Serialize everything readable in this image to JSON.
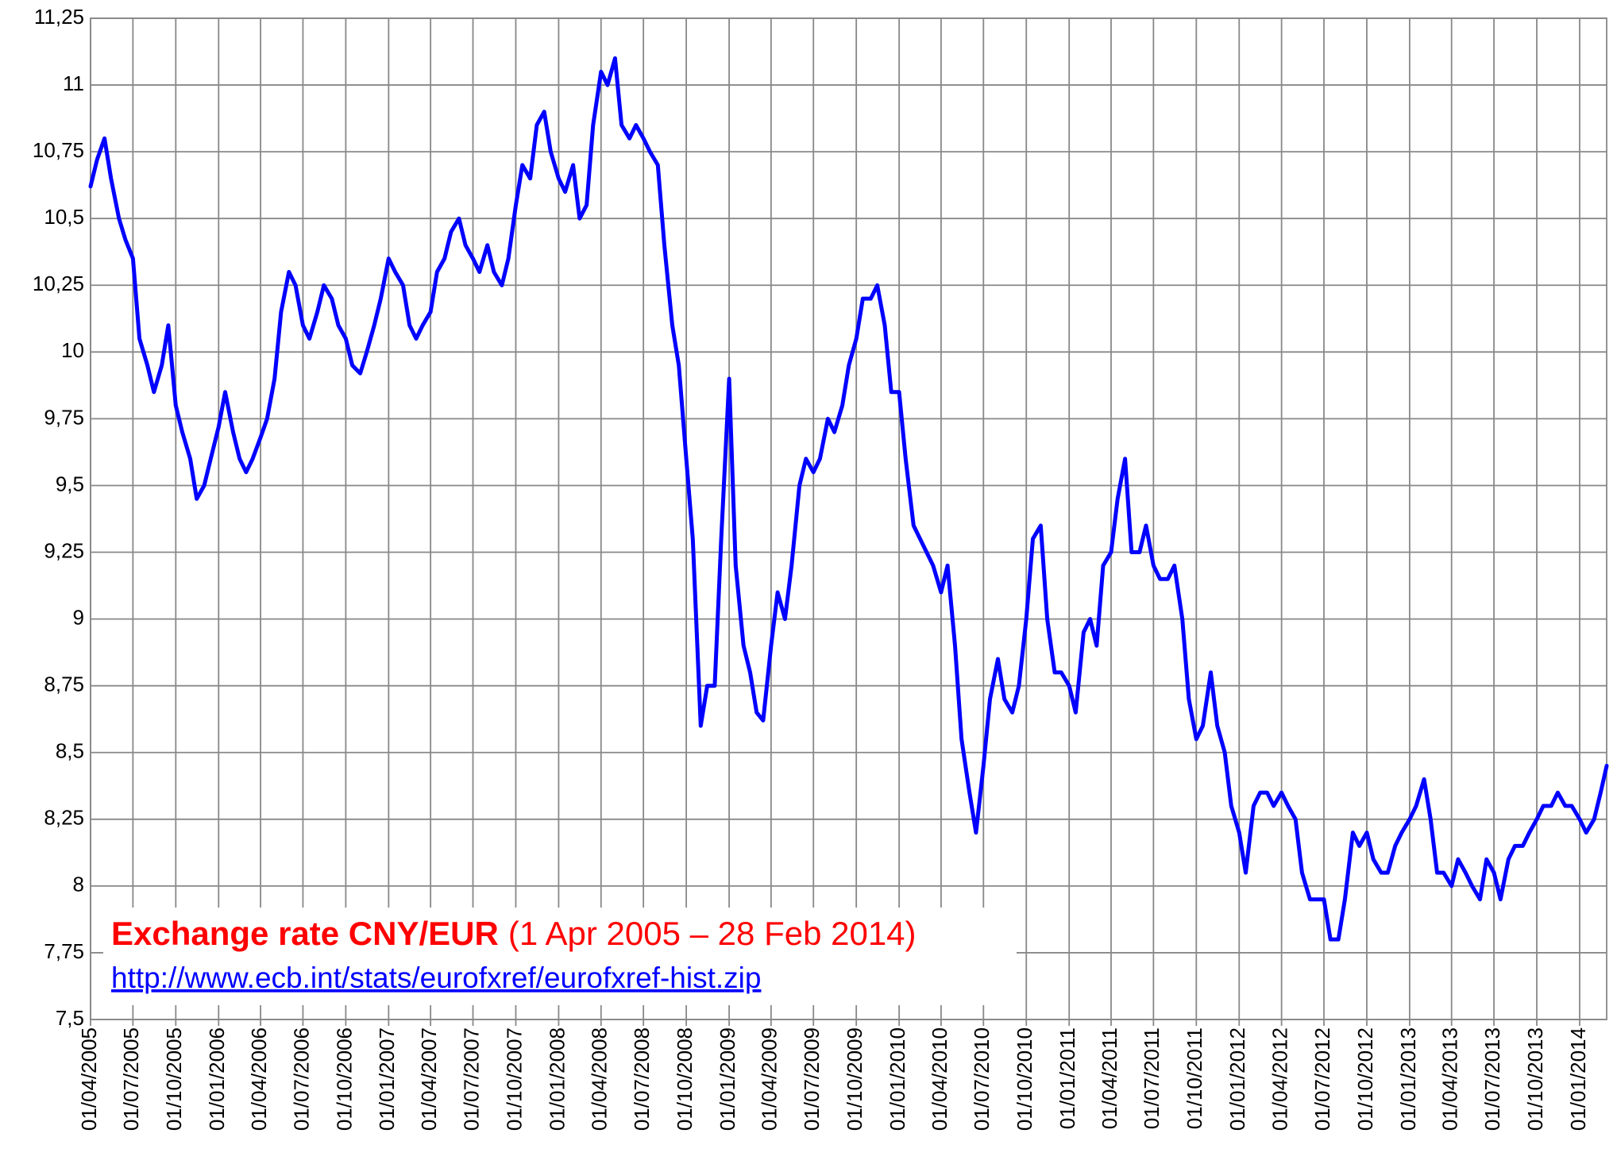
{
  "chart_data": {
    "type": "line",
    "title": "Exchange rate CNY/EUR",
    "subtitle": "(1 Apr 2005 – 28 Feb 2014)",
    "source": "http://www.ecb.int/stats/eurofxref/eurofxref-hist.zip",
    "color": "#0000ff",
    "grid": true,
    "x": [
      "2005-04-01",
      "2005-04-15",
      "2005-05-01",
      "2005-05-15",
      "2005-06-01",
      "2005-06-15",
      "2005-07-01",
      "2005-07-15",
      "2005-08-01",
      "2005-08-15",
      "2005-09-01",
      "2005-09-15",
      "2005-10-01",
      "2005-10-15",
      "2005-11-01",
      "2005-11-15",
      "2005-12-01",
      "2005-12-15",
      "2006-01-01",
      "2006-01-15",
      "2006-02-01",
      "2006-02-15",
      "2006-03-01",
      "2006-03-15",
      "2006-04-01",
      "2006-04-15",
      "2006-05-01",
      "2006-05-15",
      "2006-06-01",
      "2006-06-15",
      "2006-07-01",
      "2006-07-15",
      "2006-08-01",
      "2006-08-15",
      "2006-09-01",
      "2006-09-15",
      "2006-10-01",
      "2006-10-15",
      "2006-11-01",
      "2006-11-15",
      "2006-12-01",
      "2006-12-15",
      "2007-01-01",
      "2007-01-15",
      "2007-02-01",
      "2007-02-15",
      "2007-03-01",
      "2007-03-15",
      "2007-04-01",
      "2007-04-15",
      "2007-05-01",
      "2007-05-15",
      "2007-06-01",
      "2007-06-15",
      "2007-07-01",
      "2007-07-15",
      "2007-08-01",
      "2007-08-15",
      "2007-09-01",
      "2007-09-15",
      "2007-10-01",
      "2007-10-15",
      "2007-11-01",
      "2007-11-15",
      "2007-12-01",
      "2007-12-15",
      "2008-01-01",
      "2008-01-15",
      "2008-02-01",
      "2008-02-15",
      "2008-03-01",
      "2008-03-15",
      "2008-04-01",
      "2008-04-15",
      "2008-05-01",
      "2008-05-15",
      "2008-06-01",
      "2008-06-15",
      "2008-07-01",
      "2008-07-15",
      "2008-08-01",
      "2008-08-15",
      "2008-09-01",
      "2008-09-15",
      "2008-10-01",
      "2008-10-15",
      "2008-11-01",
      "2008-11-15",
      "2008-12-01",
      "2008-12-15",
      "2009-01-01",
      "2009-01-15",
      "2009-02-01",
      "2009-02-15",
      "2009-03-01",
      "2009-03-15",
      "2009-04-01",
      "2009-04-15",
      "2009-05-01",
      "2009-05-15",
      "2009-06-01",
      "2009-06-15",
      "2009-07-01",
      "2009-07-15",
      "2009-08-01",
      "2009-08-15",
      "2009-09-01",
      "2009-09-15",
      "2009-10-01",
      "2009-10-15",
      "2009-11-01",
      "2009-11-15",
      "2009-12-01",
      "2009-12-15",
      "2010-01-01",
      "2010-01-15",
      "2010-02-01",
      "2010-02-15",
      "2010-03-01",
      "2010-03-15",
      "2010-04-01",
      "2010-04-15",
      "2010-05-01",
      "2010-05-15",
      "2010-06-01",
      "2010-06-15",
      "2010-07-01",
      "2010-07-15",
      "2010-08-01",
      "2010-08-15",
      "2010-09-01",
      "2010-09-15",
      "2010-10-01",
      "2010-10-15",
      "2010-11-01",
      "2010-11-15",
      "2010-12-01",
      "2010-12-15",
      "2011-01-01",
      "2011-01-15",
      "2011-02-01",
      "2011-02-15",
      "2011-03-01",
      "2011-03-15",
      "2011-04-01",
      "2011-04-15",
      "2011-05-01",
      "2011-05-15",
      "2011-06-01",
      "2011-06-15",
      "2011-07-01",
      "2011-07-15",
      "2011-08-01",
      "2011-08-15",
      "2011-09-01",
      "2011-09-15",
      "2011-10-01",
      "2011-10-15",
      "2011-11-01",
      "2011-11-15",
      "2011-12-01",
      "2011-12-15",
      "2012-01-01",
      "2012-01-15",
      "2012-02-01",
      "2012-02-15",
      "2012-03-01",
      "2012-03-15",
      "2012-04-01",
      "2012-04-15",
      "2012-05-01",
      "2012-05-15",
      "2012-06-01",
      "2012-06-15",
      "2012-07-01",
      "2012-07-15",
      "2012-08-01",
      "2012-08-15",
      "2012-09-01",
      "2012-09-15",
      "2012-10-01",
      "2012-10-15",
      "2012-11-01",
      "2012-11-15",
      "2012-12-01",
      "2012-12-15",
      "2013-01-01",
      "2013-01-15",
      "2013-02-01",
      "2013-02-15",
      "2013-03-01",
      "2013-03-15",
      "2013-04-01",
      "2013-04-15",
      "2013-05-01",
      "2013-05-15",
      "2013-06-01",
      "2013-06-15",
      "2013-07-01",
      "2013-07-15",
      "2013-08-01",
      "2013-08-15",
      "2013-09-01",
      "2013-09-15",
      "2013-10-01",
      "2013-10-15",
      "2013-11-01",
      "2013-11-15",
      "2013-12-01",
      "2013-12-15",
      "2014-01-01",
      "2014-01-15",
      "2014-02-01",
      "2014-02-15",
      "2014-02-28"
    ],
    "values": [
      10.62,
      10.72,
      10.8,
      10.65,
      10.5,
      10.42,
      10.35,
      10.05,
      9.95,
      9.85,
      9.95,
      10.1,
      9.8,
      9.7,
      9.6,
      9.45,
      9.5,
      9.6,
      9.72,
      9.85,
      9.7,
      9.6,
      9.55,
      9.6,
      9.68,
      9.75,
      9.9,
      10.15,
      10.3,
      10.25,
      10.1,
      10.05,
      10.15,
      10.25,
      10.2,
      10.1,
      10.05,
      9.95,
      9.92,
      10.0,
      10.1,
      10.2,
      10.35,
      10.3,
      10.25,
      10.1,
      10.05,
      10.1,
      10.15,
      10.3,
      10.35,
      10.45,
      10.5,
      10.4,
      10.35,
      10.3,
      10.4,
      10.3,
      10.25,
      10.35,
      10.55,
      10.7,
      10.65,
      10.85,
      10.9,
      10.75,
      10.65,
      10.6,
      10.7,
      10.5,
      10.55,
      10.85,
      11.05,
      11.0,
      11.1,
      10.85,
      10.8,
      10.85,
      10.8,
      10.75,
      10.7,
      10.4,
      10.1,
      9.95,
      9.6,
      9.3,
      8.6,
      8.75,
      8.75,
      9.3,
      9.9,
      9.2,
      8.9,
      8.8,
      8.65,
      8.62,
      8.9,
      9.1,
      9.0,
      9.2,
      9.5,
      9.6,
      9.55,
      9.6,
      9.75,
      9.7,
      9.8,
      9.95,
      10.05,
      10.2,
      10.2,
      10.25,
      10.1,
      9.85,
      9.85,
      9.6,
      9.35,
      9.3,
      9.25,
      9.2,
      9.1,
      9.2,
      8.9,
      8.55,
      8.35,
      8.2,
      8.45,
      8.7,
      8.85,
      8.7,
      8.65,
      8.75,
      9.0,
      9.3,
      9.35,
      9.0,
      8.8,
      8.8,
      8.75,
      8.65,
      8.95,
      9.0,
      8.9,
      9.2,
      9.25,
      9.45,
      9.6,
      9.25,
      9.25,
      9.35,
      9.2,
      9.15,
      9.15,
      9.2,
      9.0,
      8.7,
      8.55,
      8.6,
      8.8,
      8.6,
      8.5,
      8.3,
      8.2,
      8.05,
      8.3,
      8.35,
      8.35,
      8.3,
      8.35,
      8.3,
      8.25,
      8.05,
      7.95,
      7.95,
      7.95,
      7.8,
      7.8,
      7.95,
      8.2,
      8.15,
      8.2,
      8.1,
      8.05,
      8.05,
      8.15,
      8.2,
      8.25,
      8.3,
      8.4,
      8.25,
      8.05,
      8.05,
      8.0,
      8.1,
      8.05,
      8.0,
      7.95,
      8.1,
      8.05,
      7.95,
      8.1,
      8.15,
      8.15,
      8.2,
      8.25,
      8.3,
      8.3,
      8.35,
      8.3,
      8.3,
      8.25,
      8.2,
      8.25,
      8.35,
      8.45
    ],
    "xlim": [
      "2005-04-01",
      "2014-02-28"
    ],
    "xticks": [
      {
        "value": "2005-04-01",
        "label": "01/04/2005"
      },
      {
        "value": "2005-07-01",
        "label": "01/07/2005"
      },
      {
        "value": "2005-10-01",
        "label": "01/10/2005"
      },
      {
        "value": "2006-01-01",
        "label": "01/01/2006"
      },
      {
        "value": "2006-04-01",
        "label": "01/04/2006"
      },
      {
        "value": "2006-07-01",
        "label": "01/07/2006"
      },
      {
        "value": "2006-10-01",
        "label": "01/10/2006"
      },
      {
        "value": "2007-01-01",
        "label": "01/01/2007"
      },
      {
        "value": "2007-04-01",
        "label": "01/04/2007"
      },
      {
        "value": "2007-07-01",
        "label": "01/07/2007"
      },
      {
        "value": "2007-10-01",
        "label": "01/10/2007"
      },
      {
        "value": "2008-01-01",
        "label": "01/01/2008"
      },
      {
        "value": "2008-04-01",
        "label": "01/04/2008"
      },
      {
        "value": "2008-07-01",
        "label": "01/07/2008"
      },
      {
        "value": "2008-10-01",
        "label": "01/10/2008"
      },
      {
        "value": "2009-01-01",
        "label": "01/01/2009"
      },
      {
        "value": "2009-04-01",
        "label": "01/04/2009"
      },
      {
        "value": "2009-07-01",
        "label": "01/07/2009"
      },
      {
        "value": "2009-10-01",
        "label": "01/10/2009"
      },
      {
        "value": "2010-01-01",
        "label": "01/01/2010"
      },
      {
        "value": "2010-04-01",
        "label": "01/04/2010"
      },
      {
        "value": "2010-07-01",
        "label": "01/07/2010"
      },
      {
        "value": "2010-10-01",
        "label": "01/10/2010"
      },
      {
        "value": "2011-01-01",
        "label": "01/01/2011"
      },
      {
        "value": "2011-04-01",
        "label": "01/04/2011"
      },
      {
        "value": "2011-07-01",
        "label": "01/07/2011"
      },
      {
        "value": "2011-10-01",
        "label": "01/10/2011"
      },
      {
        "value": "2012-01-01",
        "label": "01/01/2012"
      },
      {
        "value": "2012-04-01",
        "label": "01/04/2012"
      },
      {
        "value": "2012-07-01",
        "label": "01/07/2012"
      },
      {
        "value": "2012-10-01",
        "label": "01/10/2012"
      },
      {
        "value": "2013-01-01",
        "label": "01/01/2013"
      },
      {
        "value": "2013-04-01",
        "label": "01/04/2013"
      },
      {
        "value": "2013-07-01",
        "label": "01/07/2013"
      },
      {
        "value": "2013-10-01",
        "label": "01/10/2013"
      },
      {
        "value": "2014-01-01",
        "label": "01/01/2014"
      }
    ],
    "ylim": [
      7.5,
      11.25
    ],
    "yticks": [
      {
        "value": 7.5,
        "label": "7,5"
      },
      {
        "value": 7.75,
        "label": "7,75"
      },
      8,
      {
        "value": 8.25,
        "label": "8,25"
      },
      {
        "value": 8.5,
        "label": "8,5"
      },
      {
        "value": 8.75,
        "label": "8,75"
      },
      9,
      {
        "value": 9.25,
        "label": "9,25"
      },
      {
        "value": 9.5,
        "label": "9,5"
      },
      {
        "value": 9.75,
        "label": "9,75"
      },
      10,
      {
        "value": 10.25,
        "label": "10,25"
      },
      {
        "value": 10.5,
        "label": "10,5"
      },
      {
        "value": 10.75,
        "label": "10,75"
      },
      11,
      {
        "value": 11.25,
        "label": "11,25"
      }
    ]
  }
}
